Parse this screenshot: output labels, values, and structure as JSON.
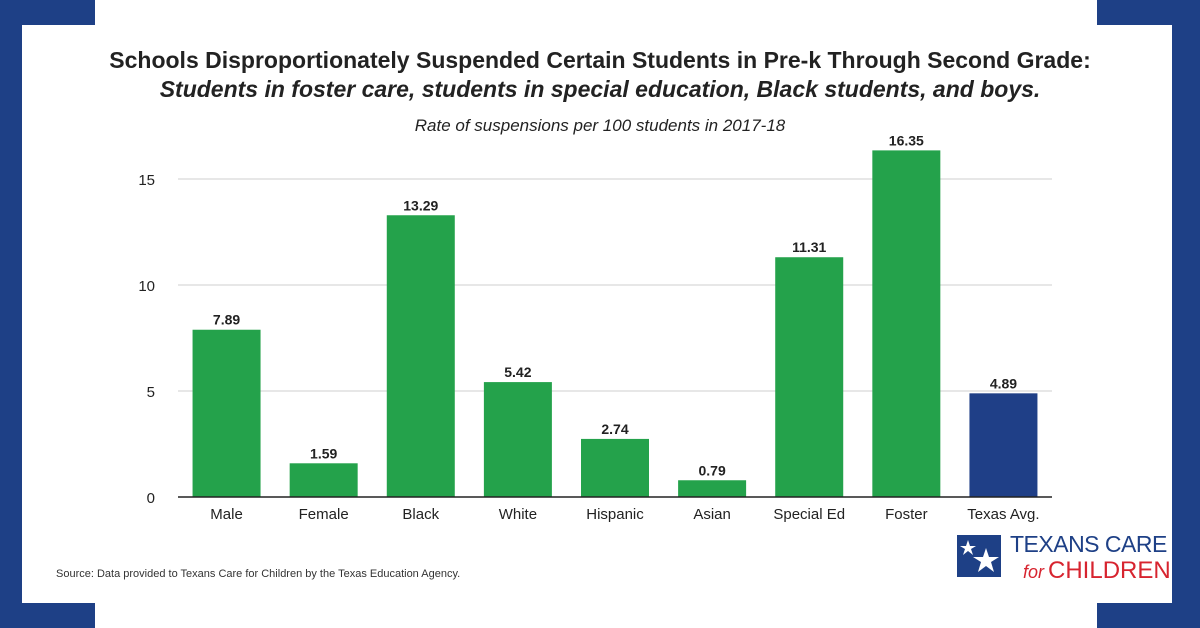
{
  "colors": {
    "frame": "#1e4086",
    "bar": "#24a24b",
    "highlight": "#1f3f87"
  },
  "title_line1": "Schools Disproportionately Suspended Certain Students in Pre-k Through Second Grade:",
  "title_line2": "Students in foster care, students in special education, Black students, and boys.",
  "source": "Source: Data provided to Texans Care for Children by the Texas Education Agency.",
  "logo": {
    "line1": "TEXANS CARE",
    "for": "for",
    "line2": "CHILDREN"
  },
  "chart_data": {
    "type": "bar",
    "title": "Rate of suspensions per 100 students in 2017-18",
    "categories": [
      "Male",
      "Female",
      "Black",
      "White",
      "Hispanic",
      "Asian",
      "Special Ed",
      "Foster",
      "Texas Avg."
    ],
    "values": [
      7.89,
      1.59,
      13.29,
      5.42,
      2.74,
      0.79,
      11.31,
      16.35,
      4.89
    ],
    "labels": [
      "7.89",
      "1.59",
      "13.29",
      "5.42",
      "2.74",
      "0.79",
      "11.31",
      "16.35",
      "4.89"
    ],
    "highlight": [
      "Texas Avg."
    ],
    "yticks": [
      "0",
      "5",
      "10",
      "15"
    ],
    "ytick_values": [
      0,
      5,
      10,
      15
    ],
    "ylim": [
      0,
      16.35
    ],
    "grid": true,
    "xlabel": "",
    "ylabel": ""
  }
}
